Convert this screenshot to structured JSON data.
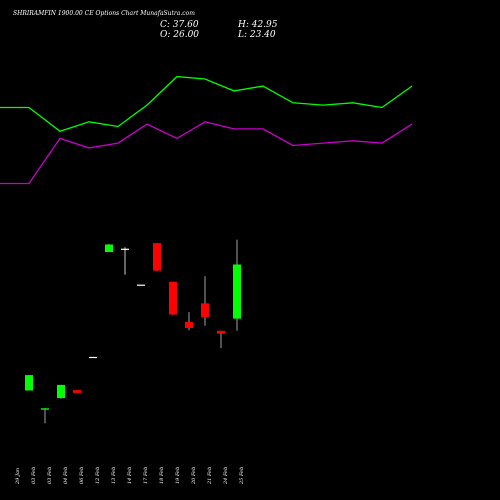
{
  "header": {
    "title": "SHRIRAMFIN  1900.00  CE Options  Chart MunafaSutra.com",
    "close": "C: 37.60",
    "open": "O: 26.00",
    "high": "H: 42.95",
    "low": "L: 23.40"
  },
  "colors": {
    "background": "#000000",
    "up": "#00ff00",
    "down": "#ff0000",
    "line_upper": "#00ff00",
    "line_lower": "#cc00cc",
    "text": "#ffffff"
  },
  "chart_data": {
    "type": "candlestick",
    "x": [
      "29 Jan",
      "03 Feb",
      "03 Feb",
      "04 Feb",
      "06 Feb",
      "12 Feb",
      "13 Feb",
      "14 Feb",
      "17 Feb",
      "18 Feb",
      "19 Feb",
      "20 Feb",
      "21 Feb",
      "24 Feb",
      "25 Feb"
    ],
    "candles": [
      {
        "open": 10.6,
        "high": 13.9,
        "low": 10.6,
        "close": 13.9,
        "dir": "up"
      },
      {
        "open": 6.5,
        "high": 6.8,
        "low": 3.6,
        "close": 6.8,
        "dir": "up"
      },
      {
        "open": 9.0,
        "high": 11.8,
        "low": 8.8,
        "close": 11.8,
        "dir": "up"
      },
      {
        "open": 10.7,
        "high": 10.7,
        "low": 10.1,
        "close": 10.1,
        "dir": "down"
      },
      {
        "open": 17.8,
        "high": 17.8,
        "low": 17.8,
        "close": 17.8,
        "dir": "flat"
      },
      {
        "open": 40.3,
        "high": 42.0,
        "low": 40.3,
        "close": 41.9,
        "dir": "up"
      },
      {
        "open": 41.0,
        "high": 41.3,
        "low": 35.4,
        "close": 41.0,
        "dir": "flat"
      },
      {
        "open": 33.3,
        "high": 33.3,
        "low": 33.3,
        "close": 33.3,
        "dir": "flat"
      },
      {
        "open": 42.2,
        "high": 42.2,
        "low": 36.2,
        "close": 36.3,
        "dir": "down"
      },
      {
        "open": 33.9,
        "high": 33.9,
        "low": 26.8,
        "close": 26.9,
        "dir": "down"
      },
      {
        "open": 25.3,
        "high": 27.4,
        "low": 23.5,
        "close": 24.0,
        "dir": "down"
      },
      {
        "open": 29.3,
        "high": 35.1,
        "low": 24.5,
        "close": 26.3,
        "dir": "down"
      },
      {
        "open": 23.4,
        "high": 23.4,
        "low": 19.7,
        "close": 22.8,
        "dir": "down"
      },
      {
        "open": 26.0,
        "high": 42.95,
        "low": 23.4,
        "close": 37.6,
        "dir": "up"
      }
    ],
    "candle_x_index": [
      0,
      1,
      2,
      3,
      4,
      5,
      6,
      7,
      8,
      9,
      10,
      11,
      12,
      13
    ],
    "lines": [
      {
        "color": "#00ff00",
        "values": [
          60,
          60,
          50,
          54,
          52,
          61,
          73,
          72,
          67,
          69,
          62,
          61,
          62,
          60,
          69
        ]
      },
      {
        "color": "#cc00cc",
        "values": [
          28,
          28,
          47,
          43,
          45,
          53,
          47,
          54,
          51,
          51,
          44,
          45,
          46,
          45,
          53
        ]
      }
    ],
    "ylim": [
      0,
      80
    ]
  }
}
